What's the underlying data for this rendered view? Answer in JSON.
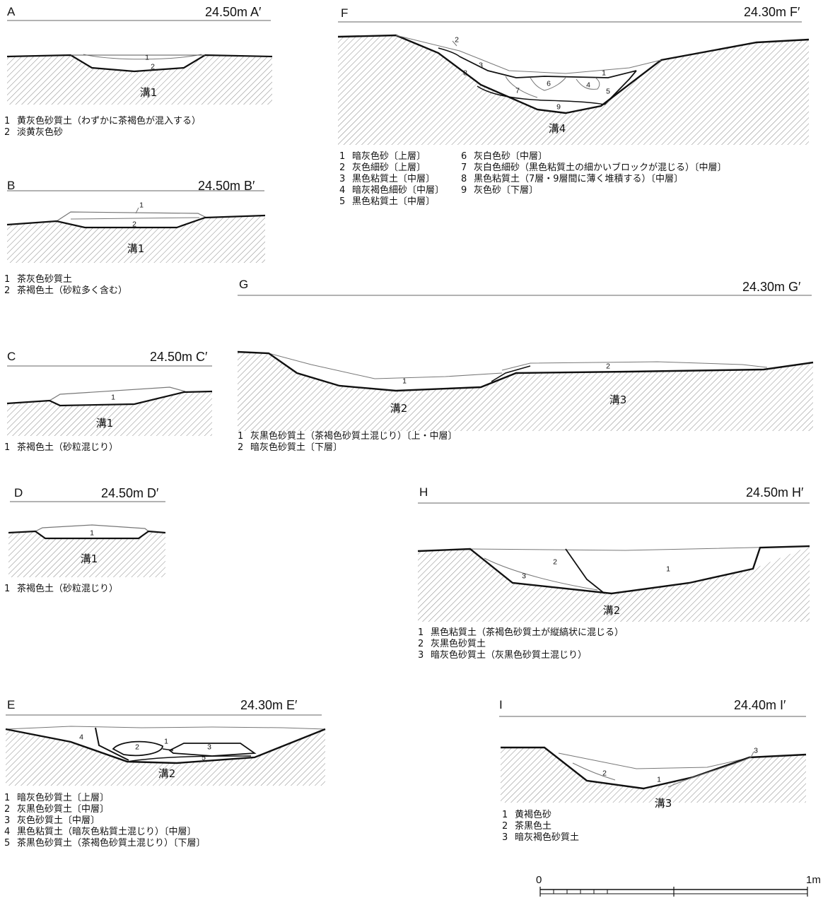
{
  "sections": {
    "A": {
      "letter": "A",
      "elev": "24.50m A′",
      "features": [
        "溝1"
      ],
      "layers": [
        "1",
        "2"
      ],
      "legend": [
        "黄灰色砂質土（わずかに茶褐色が混入する）",
        "淡黄灰色砂"
      ]
    },
    "B": {
      "letter": "B",
      "elev": "24.50m B′",
      "features": [
        "溝1"
      ],
      "layers": [
        "1",
        "2"
      ],
      "legend": [
        "茶灰色砂質土",
        "茶褐色土（砂粒多く含む）"
      ]
    },
    "C": {
      "letter": "C",
      "elev": "24.50m C′",
      "features": [
        "溝1"
      ],
      "layers": [
        "1"
      ],
      "legend": [
        "茶褐色土（砂粒混じり）"
      ]
    },
    "D": {
      "letter": "D",
      "elev": "24.50m D′",
      "features": [
        "溝1"
      ],
      "layers": [
        "1"
      ],
      "legend": [
        "茶褐色土（砂粒混じり）"
      ]
    },
    "E": {
      "letter": "E",
      "elev": "24.30m E′",
      "features": [
        "溝2"
      ],
      "layers": [
        "1",
        "2",
        "3",
        "4",
        "5"
      ],
      "legend": [
        "暗灰色砂質土〔上層〕",
        "灰黒色砂質土〔中層〕",
        "灰色砂質土〔中層〕",
        "黒色粘質土（暗灰色粘質土混じり）〔中層〕",
        "茶黒色砂質土（茶褐色砂質土混じり）〔下層〕"
      ]
    },
    "F": {
      "letter": "F",
      "elev": "24.30m F′",
      "features": [
        "溝4"
      ],
      "layers": [
        "1",
        "2",
        "3",
        "4",
        "5",
        "6",
        "7",
        "8",
        "9"
      ],
      "legend": [
        "暗灰色砂〔上層〕",
        "灰色細砂〔上層〕",
        "黒色粘質土〔中層〕",
        "暗灰褐色細砂〔中層〕",
        "黒色粘質土〔中層〕",
        "灰白色砂〔中層〕",
        "灰白色細砂（黒色粘質土の細かいブロックが混じる）〔中層〕",
        "黒色粘質土（7層・9層間に薄く堆積する）〔中層〕",
        "灰色砂〔下層〕"
      ]
    },
    "G": {
      "letter": "G",
      "elev": "24.30m G′",
      "features": [
        "溝2",
        "溝3"
      ],
      "layers": [
        "1",
        "2"
      ],
      "legend": [
        "灰黒色砂質土（茶褐色砂質土混じり）〔上・中層〕",
        "暗灰色砂質土〔下層〕"
      ]
    },
    "H": {
      "letter": "H",
      "elev": "24.50m H′",
      "features": [
        "溝2"
      ],
      "layers": [
        "1",
        "2",
        "3"
      ],
      "legend": [
        "黒色粘質土（茶褐色砂質土が縦縞状に混じる）",
        "灰黒色砂質土",
        "暗灰色砂質土（灰黒色砂質土混じり）"
      ]
    },
    "I": {
      "letter": "I",
      "elev": "24.40m I′",
      "features": [
        "溝3"
      ],
      "layers": [
        "1",
        "2",
        "3"
      ],
      "legend": [
        "黄褐色砂",
        "茶黒色土",
        "暗灰褐色砂質土"
      ]
    }
  },
  "scale": {
    "start": "0",
    "end": "1m"
  }
}
